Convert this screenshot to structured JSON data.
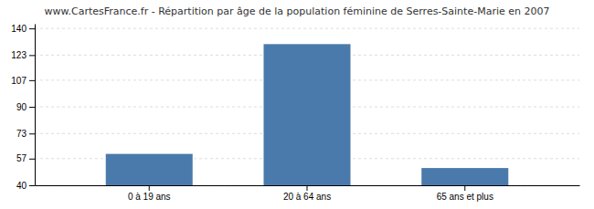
{
  "chart_data": {
    "type": "bar",
    "title": "www.CartesFrance.fr - Répartition par âge de la population féminine de Serres-Sainte-Marie en 2007",
    "categories": [
      "0 à 19 ans",
      "20 à 64 ans",
      "65 ans et plus"
    ],
    "values": [
      60,
      130,
      51
    ],
    "color": "#4a7aab",
    "ylim": [
      40,
      143
    ],
    "yticks": [
      40,
      57,
      73,
      90,
      107,
      123,
      140
    ],
    "grid": true
  }
}
